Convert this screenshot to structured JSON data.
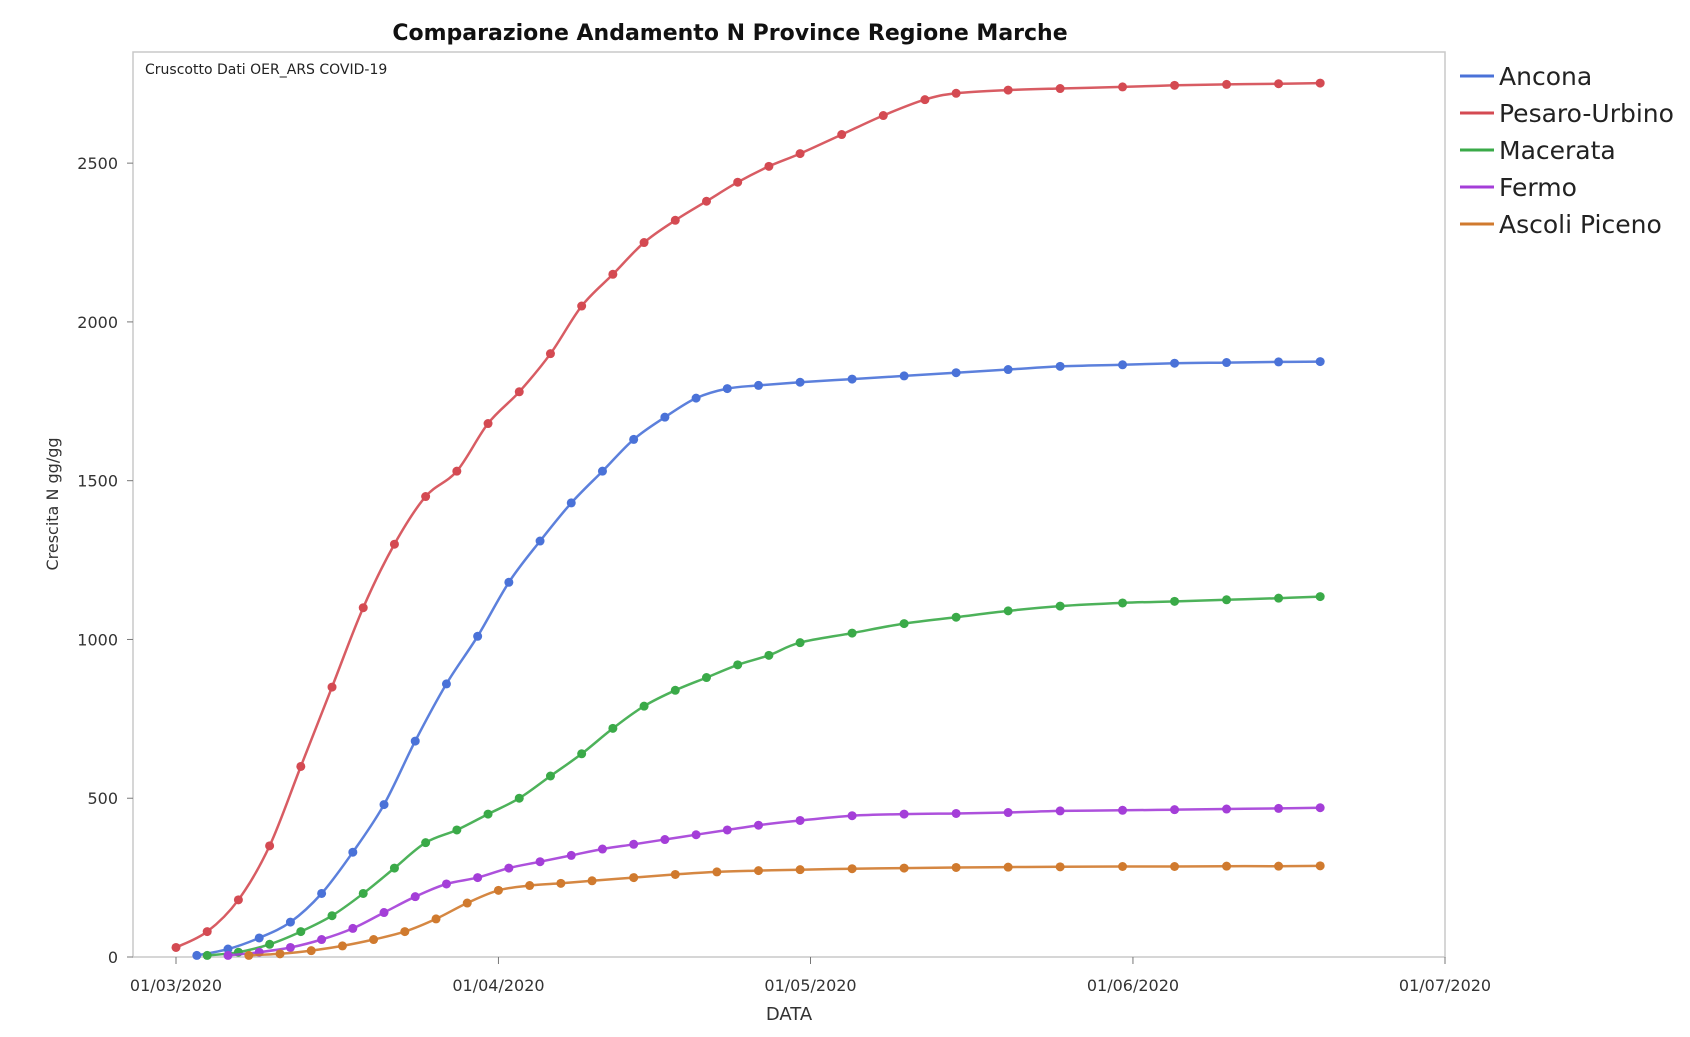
{
  "chart_data": {
    "type": "scatter",
    "title": "Comparazione Andamento N Province Regione Marche",
    "annotation": "Cruscotto Dati OER_ARS COVID-19",
    "xlabel": "DATA",
    "ylabel": "Crescita N gg/gg",
    "x_ticks": [
      "01/03/2020",
      "01/04/2020",
      "01/05/2020",
      "01/06/2020",
      "01/07/2020"
    ],
    "xlim": [
      "2020-03-01",
      "2020-07-01"
    ],
    "y_ticks": [
      0,
      500,
      1000,
      1500,
      2000,
      2500
    ],
    "ylim": [
      0,
      2850
    ],
    "grid": false,
    "legend_position": "right",
    "series": [
      {
        "name": "Ancona",
        "color": "#4a72d8",
        "x": [
          "2020-03-03",
          "2020-03-06",
          "2020-03-09",
          "2020-03-12",
          "2020-03-15",
          "2020-03-18",
          "2020-03-21",
          "2020-03-24",
          "2020-03-27",
          "2020-03-30",
          "2020-04-02",
          "2020-04-05",
          "2020-04-08",
          "2020-04-11",
          "2020-04-14",
          "2020-04-17",
          "2020-04-20",
          "2020-04-23",
          "2020-04-26",
          "2020-04-30",
          "2020-05-05",
          "2020-05-10",
          "2020-05-15",
          "2020-05-20",
          "2020-05-25",
          "2020-05-31",
          "2020-06-05",
          "2020-06-10",
          "2020-06-15",
          "2020-06-19"
        ],
        "values": [
          5,
          25,
          60,
          110,
          200,
          330,
          480,
          680,
          860,
          1010,
          1180,
          1310,
          1430,
          1530,
          1630,
          1700,
          1760,
          1790,
          1800,
          1810,
          1820,
          1830,
          1840,
          1850,
          1860,
          1865,
          1870,
          1872,
          1874,
          1875
        ]
      },
      {
        "name": "Pesaro-Urbino",
        "color": "#d44a52",
        "x": [
          "2020-03-01",
          "2020-03-04",
          "2020-03-07",
          "2020-03-10",
          "2020-03-13",
          "2020-03-16",
          "2020-03-19",
          "2020-03-22",
          "2020-03-25",
          "2020-03-28",
          "2020-03-31",
          "2020-04-03",
          "2020-04-06",
          "2020-04-09",
          "2020-04-12",
          "2020-04-15",
          "2020-04-18",
          "2020-04-21",
          "2020-04-24",
          "2020-04-27",
          "2020-04-30",
          "2020-05-04",
          "2020-05-08",
          "2020-05-12",
          "2020-05-15",
          "2020-05-20",
          "2020-05-25",
          "2020-05-31",
          "2020-06-05",
          "2020-06-10",
          "2020-06-15",
          "2020-06-19"
        ],
        "values": [
          30,
          80,
          180,
          350,
          600,
          850,
          1100,
          1300,
          1450,
          1530,
          1680,
          1780,
          1900,
          2050,
          2150,
          2250,
          2320,
          2380,
          2440,
          2490,
          2530,
          2590,
          2650,
          2700,
          2720,
          2730,
          2735,
          2740,
          2745,
          2748,
          2750,
          2752
        ]
      },
      {
        "name": "Macerata",
        "color": "#3aaa48",
        "x": [
          "2020-03-04",
          "2020-03-07",
          "2020-03-10",
          "2020-03-13",
          "2020-03-16",
          "2020-03-19",
          "2020-03-22",
          "2020-03-25",
          "2020-03-28",
          "2020-03-31",
          "2020-04-03",
          "2020-04-06",
          "2020-04-09",
          "2020-04-12",
          "2020-04-15",
          "2020-04-18",
          "2020-04-21",
          "2020-04-24",
          "2020-04-27",
          "2020-04-30",
          "2020-05-05",
          "2020-05-10",
          "2020-05-15",
          "2020-05-20",
          "2020-05-25",
          "2020-05-31",
          "2020-06-05",
          "2020-06-10",
          "2020-06-15",
          "2020-06-19"
        ],
        "values": [
          5,
          15,
          40,
          80,
          130,
          200,
          280,
          360,
          400,
          450,
          500,
          570,
          640,
          720,
          790,
          840,
          880,
          920,
          950,
          990,
          1020,
          1050,
          1070,
          1090,
          1105,
          1115,
          1120,
          1125,
          1130,
          1135
        ]
      },
      {
        "name": "Fermo",
        "color": "#a43ed8",
        "x": [
          "2020-03-06",
          "2020-03-09",
          "2020-03-12",
          "2020-03-15",
          "2020-03-18",
          "2020-03-21",
          "2020-03-24",
          "2020-03-27",
          "2020-03-30",
          "2020-04-02",
          "2020-04-05",
          "2020-04-08",
          "2020-04-11",
          "2020-04-14",
          "2020-04-17",
          "2020-04-20",
          "2020-04-23",
          "2020-04-26",
          "2020-04-30",
          "2020-05-05",
          "2020-05-10",
          "2020-05-15",
          "2020-05-20",
          "2020-05-25",
          "2020-05-31",
          "2020-06-05",
          "2020-06-10",
          "2020-06-15",
          "2020-06-19"
        ],
        "values": [
          5,
          15,
          30,
          55,
          90,
          140,
          190,
          230,
          250,
          280,
          300,
          320,
          340,
          355,
          370,
          385,
          400,
          415,
          430,
          445,
          450,
          452,
          455,
          460,
          462,
          464,
          466,
          468,
          470
        ]
      },
      {
        "name": "Ascoli Piceno",
        "color": "#d07a2e",
        "x": [
          "2020-03-08",
          "2020-03-11",
          "2020-03-14",
          "2020-03-17",
          "2020-03-20",
          "2020-03-23",
          "2020-03-26",
          "2020-03-29",
          "2020-04-01",
          "2020-04-04",
          "2020-04-07",
          "2020-04-10",
          "2020-04-14",
          "2020-04-18",
          "2020-04-22",
          "2020-04-26",
          "2020-04-30",
          "2020-05-05",
          "2020-05-10",
          "2020-05-15",
          "2020-05-20",
          "2020-05-25",
          "2020-05-31",
          "2020-06-05",
          "2020-06-10",
          "2020-06-15",
          "2020-06-19"
        ],
        "values": [
          5,
          10,
          20,
          35,
          55,
          80,
          120,
          170,
          210,
          225,
          232,
          240,
          250,
          260,
          268,
          272,
          275,
          278,
          280,
          282,
          283,
          284,
          285,
          285,
          286,
          286,
          287
        ]
      }
    ]
  }
}
